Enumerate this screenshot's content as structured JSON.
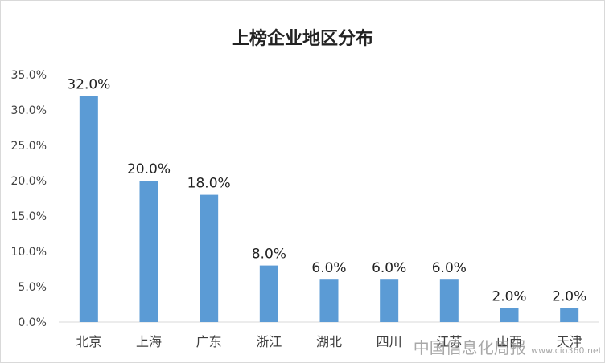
{
  "watermark": {
    "text": "中国信息化周报",
    "url": "www.cio360.net"
  },
  "chart_data": {
    "type": "bar",
    "title": "上榜企业地区分布",
    "xlabel": "",
    "ylabel": "",
    "categories": [
      "北京",
      "上海",
      "广东",
      "浙江",
      "湖北",
      "四川",
      "江苏",
      "山西",
      "天津"
    ],
    "values": [
      32.0,
      20.0,
      18.0,
      8.0,
      6.0,
      6.0,
      6.0,
      2.0,
      2.0
    ],
    "data_labels": [
      "32.0%",
      "20.0%",
      "18.0%",
      "8.0%",
      "6.0%",
      "6.0%",
      "6.0%",
      "2.0%",
      "2.0%"
    ],
    "ylim": [
      0,
      35
    ],
    "yticks": [
      0,
      5,
      10,
      15,
      20,
      25,
      30,
      35
    ],
    "ytick_labels": [
      "0.0%",
      "5.0%",
      "10.0%",
      "15.0%",
      "20.0%",
      "25.0%",
      "30.0%",
      "35.0%"
    ],
    "bar_color": "#5b9bd5",
    "grid": false,
    "legend": "none"
  }
}
